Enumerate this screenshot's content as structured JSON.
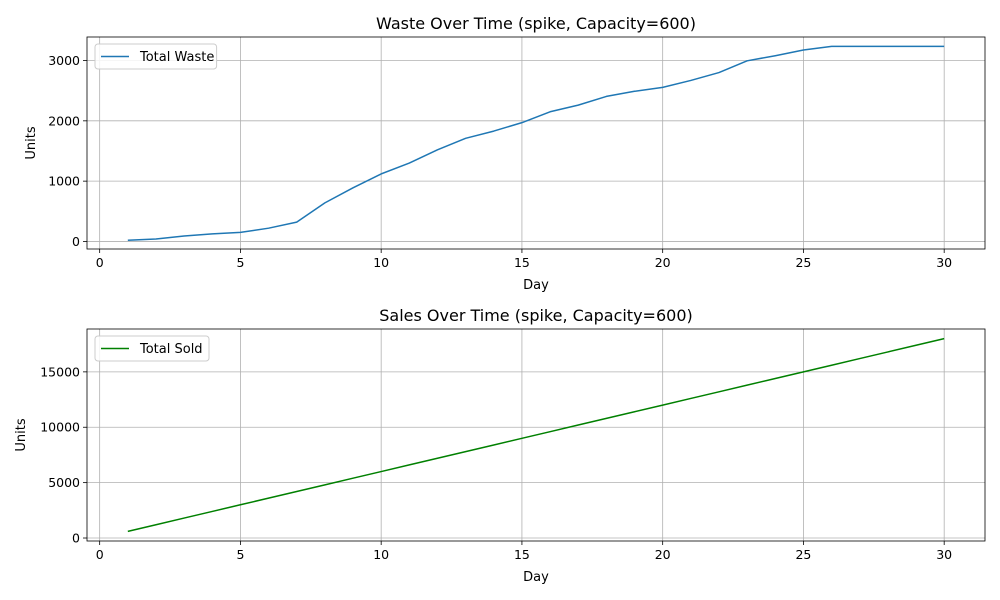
{
  "chart_data": [
    {
      "type": "line",
      "title": "Waste Over Time (spike, Capacity=600)",
      "xlabel": "Day",
      "ylabel": "Units",
      "xlim": [
        -0.45,
        31.45
      ],
      "ylim": [
        -125,
        3390
      ],
      "xticks": [
        0,
        5,
        10,
        15,
        20,
        25,
        30
      ],
      "yticks": [
        0,
        1000,
        2000,
        3000
      ],
      "grid": true,
      "legend_position": "upper left",
      "series": [
        {
          "name": "Total Waste",
          "color": "#1f77b4",
          "x": [
            1,
            2,
            3,
            4,
            5,
            6,
            7,
            8,
            9,
            10,
            11,
            12,
            13,
            14,
            15,
            16,
            17,
            18,
            19,
            20,
            21,
            22,
            23,
            24,
            25,
            26,
            27,
            28,
            29,
            30
          ],
          "y": [
            20,
            40,
            90,
            125,
            150,
            220,
            320,
            640,
            890,
            1120,
            1300,
            1520,
            1710,
            1830,
            1970,
            2150,
            2260,
            2405,
            2490,
            2555,
            2670,
            2800,
            2995,
            3080,
            3175,
            3235,
            3235,
            3235,
            3235,
            3235
          ]
        }
      ]
    },
    {
      "type": "line",
      "title": "Sales Over Time (spike, Capacity=600)",
      "xlabel": "Day",
      "ylabel": "Units",
      "xlim": [
        -0.45,
        31.45
      ],
      "ylim": [
        -270,
        18870
      ],
      "xticks": [
        0,
        5,
        10,
        15,
        20,
        25,
        30
      ],
      "yticks": [
        0,
        5000,
        10000,
        15000
      ],
      "grid": true,
      "legend_position": "upper left",
      "series": [
        {
          "name": "Total Sold",
          "color": "#008000",
          "x": [
            1,
            2,
            3,
            4,
            5,
            6,
            7,
            8,
            9,
            10,
            11,
            12,
            13,
            14,
            15,
            16,
            17,
            18,
            19,
            20,
            21,
            22,
            23,
            24,
            25,
            26,
            27,
            28,
            29,
            30
          ],
          "y": [
            600,
            1200,
            1800,
            2400,
            3000,
            3600,
            4200,
            4800,
            5400,
            6000,
            6600,
            7200,
            7800,
            8400,
            9000,
            9600,
            10200,
            10800,
            11400,
            12000,
            12600,
            13200,
            13800,
            14400,
            15000,
            15600,
            16200,
            16800,
            17400,
            18000
          ]
        }
      ]
    }
  ]
}
